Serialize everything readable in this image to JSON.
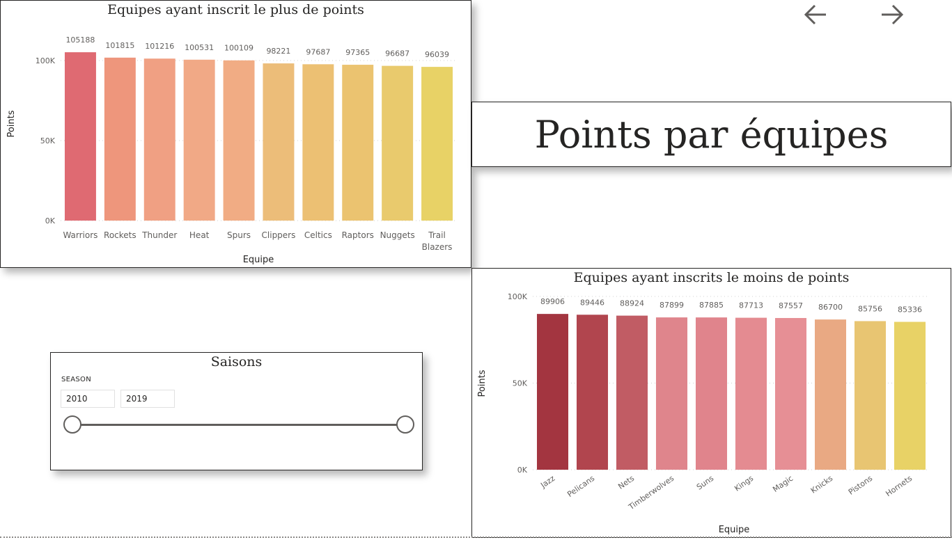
{
  "page_title": "Points par équipes",
  "nav": {
    "back_icon": "arrow-left-icon",
    "forward_icon": "arrow-right-icon"
  },
  "slicer": {
    "title": "Saisons",
    "field_label": "SEASON",
    "start_value": "2010",
    "end_value": "2019"
  },
  "chart_data": [
    {
      "type": "bar",
      "title": "Equipes ayant inscrit le plus de points",
      "xlabel": "Equipe",
      "ylabel": "Points",
      "ylim": [
        0,
        120000
      ],
      "yticks": [
        0,
        50000,
        100000
      ],
      "ytick_labels": [
        "0K",
        "50K",
        "100K"
      ],
      "grid": true,
      "categories": [
        "Warriors",
        "Rockets",
        "Thunder",
        "Heat",
        "Spurs",
        "Clippers",
        "Celtics",
        "Raptors",
        "Nuggets",
        "Trail Blazers"
      ],
      "values": [
        105188,
        101815,
        101216,
        100531,
        100109,
        98221,
        97687,
        97365,
        96687,
        96039
      ],
      "colors": [
        "#df6a72",
        "#ee967c",
        "#f0a083",
        "#f1a986",
        "#f1ac84",
        "#ecbd79",
        "#ecc073",
        "#ebc370",
        "#e9ca6d",
        "#e8d266"
      ]
    },
    {
      "type": "bar",
      "title": "Equipes ayant inscrits le moins de points",
      "xlabel": "Equipe",
      "ylabel": "Points",
      "ylim": [
        0,
        100000
      ],
      "yticks": [
        0,
        50000,
        100000
      ],
      "ytick_labels": [
        "0K",
        "50K",
        "100K"
      ],
      "grid": true,
      "categories": [
        "Jazz",
        "Pelicans",
        "Nets",
        "Timberwolves",
        "Suns",
        "Kings",
        "Magic",
        "Knicks",
        "Pistons",
        "Hornets"
      ],
      "values": [
        89906,
        89446,
        88924,
        87899,
        87885,
        87713,
        87557,
        86700,
        85756,
        85336
      ],
      "colors": [
        "#a33540",
        "#b1454e",
        "#c15c64",
        "#df858c",
        "#e0848c",
        "#e48b91",
        "#e68f95",
        "#e9a983",
        "#e8c572",
        "#e8d266"
      ]
    }
  ]
}
